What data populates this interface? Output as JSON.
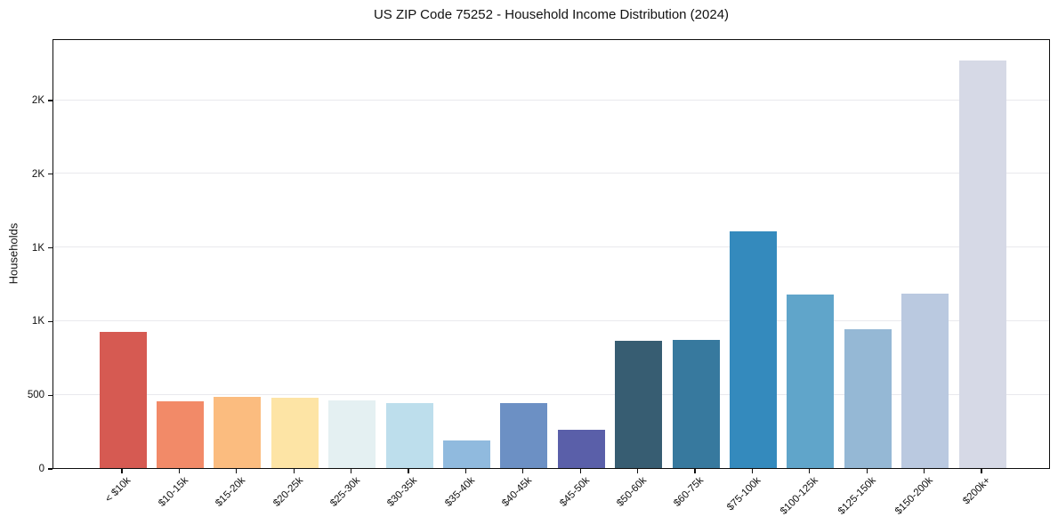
{
  "chart_data": {
    "type": "bar",
    "title": "US ZIP Code 75252 - Household Income Distribution (2024)",
    "xlabel": "",
    "ylabel": "Households",
    "categories": [
      "< $10k",
      "$10-15k",
      "$15-20k",
      "$20-25k",
      "$25-30k",
      "$30-35k",
      "$35-40k",
      "$40-45k",
      "$45-50k",
      "$50-60k",
      "$60-75k",
      "$75-100k",
      "$100-125k",
      "$125-150k",
      "$150-200k",
      "$200k+"
    ],
    "values": [
      925,
      452,
      481,
      477,
      457,
      439,
      186,
      441,
      259,
      862,
      869,
      1604,
      1177,
      945,
      1182,
      2766
    ],
    "bar_colors": [
      "#d65a52",
      "#f28a68",
      "#fbbc7f",
      "#fde4a5",
      "#e4f0f2",
      "#bddeec",
      "#90bade",
      "#6c90c4",
      "#5a5fa9",
      "#375d72",
      "#37799e",
      "#348abd",
      "#60a5ca",
      "#95b8d5",
      "#bac9e0",
      "#d6d9e6"
    ],
    "ylim": [
      0,
      2917
    ],
    "yticks": [
      {
        "value": 0,
        "label": "0"
      },
      {
        "value": 500,
        "label": "500"
      },
      {
        "value": 1000,
        "label": "1K"
      },
      {
        "value": 1500,
        "label": "1K"
      },
      {
        "value": 2000,
        "label": "2K"
      },
      {
        "value": 2500,
        "label": "2K"
      }
    ],
    "grid": "horizontal",
    "grid_color": "#e9e9ed",
    "spine_color": "#0d0d0d",
    "background_color": "#ffffff",
    "legend": "none",
    "x_tick_rotation_deg": 45
  }
}
